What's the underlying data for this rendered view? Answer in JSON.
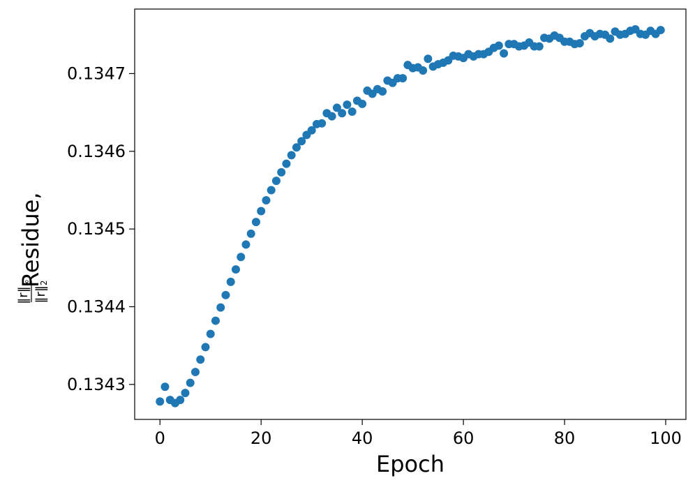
{
  "chart_data": {
    "type": "scatter",
    "xlabel": "Epoch",
    "ylabel_prefix": "Residue,",
    "ylabel_fraction": {
      "numerator": "‖r‖",
      "numerator_sub": "∞",
      "denominator": "‖r‖",
      "denominator_sub": "2"
    },
    "xlim": [
      -5,
      104
    ],
    "ylim": [
      0.134255,
      0.134783
    ],
    "xticks": [
      0,
      20,
      40,
      60,
      80,
      100
    ],
    "xtick_labels": [
      "0",
      "20",
      "40",
      "60",
      "80",
      "100"
    ],
    "yticks": [
      0.1343,
      0.1344,
      0.1345,
      0.1346,
      0.1347
    ],
    "ytick_labels": [
      "0.1343",
      "0.1344",
      "0.1345",
      "0.1346",
      "0.1347"
    ],
    "grid": false,
    "marker_color": "#1f77b4",
    "series": [
      {
        "x": [
          0,
          1,
          2,
          3,
          4,
          5,
          6,
          7,
          8,
          9,
          10,
          11,
          12,
          13,
          14,
          15,
          16,
          17,
          18,
          19,
          20,
          21,
          22,
          23,
          24,
          25,
          26,
          27,
          28,
          29,
          30,
          31,
          32,
          33,
          34,
          35,
          36,
          37,
          38,
          39,
          40,
          41,
          42,
          43,
          44,
          45,
          46,
          47,
          48,
          49,
          50,
          51,
          52,
          53,
          54,
          55,
          56,
          57,
          58,
          59,
          60,
          61,
          62,
          63,
          64,
          65,
          66,
          67,
          68,
          69,
          70,
          71,
          72,
          73,
          74,
          75,
          76,
          77,
          78,
          79,
          80,
          81,
          82,
          83,
          84,
          85,
          86,
          87,
          88,
          89,
          90,
          91,
          92,
          93,
          94,
          95,
          96,
          97,
          98,
          99
        ],
        "y": [
          0.134278,
          0.134297,
          0.13428,
          0.134276,
          0.13428,
          0.134289,
          0.134302,
          0.134316,
          0.134332,
          0.134348,
          0.134365,
          0.134382,
          0.134399,
          0.134415,
          0.134432,
          0.134448,
          0.134464,
          0.13448,
          0.134494,
          0.134509,
          0.134523,
          0.134537,
          0.13455,
          0.134562,
          0.134573,
          0.134584,
          0.134595,
          0.134605,
          0.134613,
          0.134621,
          0.134627,
          0.134635,
          0.134636,
          0.134649,
          0.134645,
          0.134656,
          0.134649,
          0.13466,
          0.134651,
          0.134665,
          0.134661,
          0.134678,
          0.134674,
          0.13468,
          0.134677,
          0.134691,
          0.134688,
          0.134694,
          0.134694,
          0.134711,
          0.134707,
          0.134708,
          0.134704,
          0.134719,
          0.134709,
          0.134712,
          0.134714,
          0.134717,
          0.134723,
          0.134722,
          0.13472,
          0.134725,
          0.134722,
          0.134725,
          0.134725,
          0.134728,
          0.134733,
          0.134736,
          0.134726,
          0.134738,
          0.134738,
          0.134735,
          0.134736,
          0.13474,
          0.134735,
          0.134735,
          0.134746,
          0.134745,
          0.134749,
          0.134746,
          0.134741,
          0.134741,
          0.134738,
          0.134739,
          0.134748,
          0.134752,
          0.134748,
          0.134751,
          0.13475,
          0.134745,
          0.134754,
          0.13475,
          0.134751,
          0.134755,
          0.134757,
          0.134751,
          0.13475,
          0.134755,
          0.134751,
          0.134756
        ]
      }
    ]
  }
}
